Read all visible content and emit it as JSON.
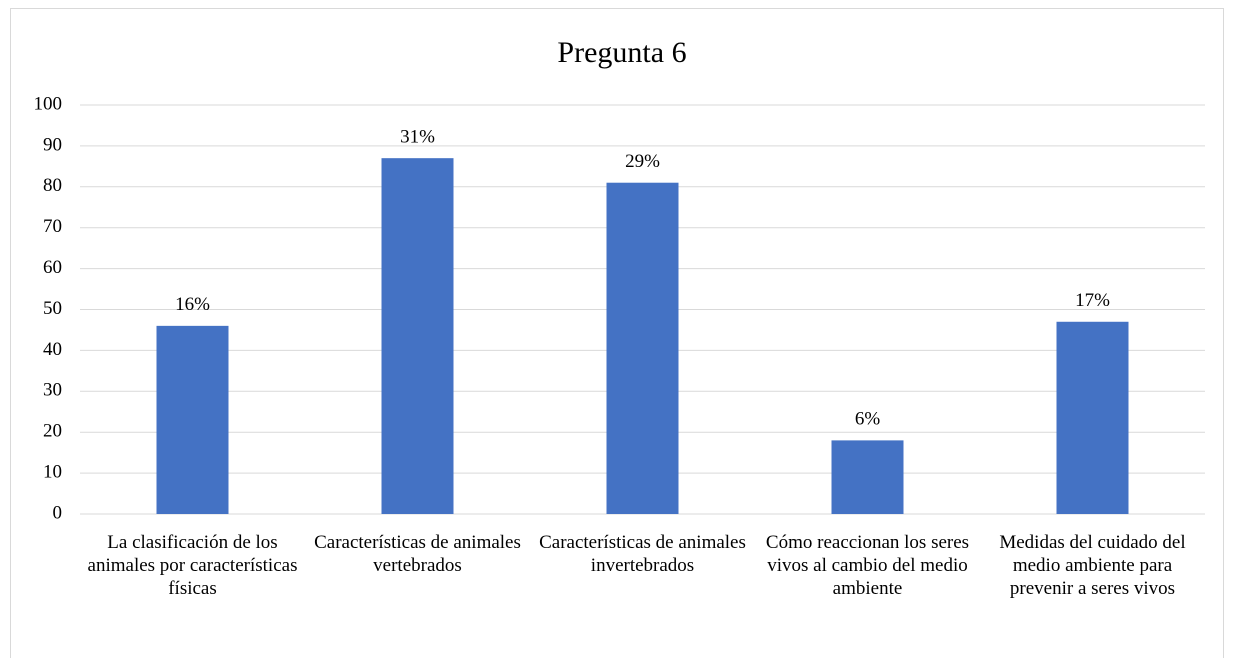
{
  "chart_data": {
    "type": "bar",
    "title": "Pregunta 6",
    "categories": [
      "La clasificación de los animales por características físicas",
      "Características de animales vertebrados",
      "Características de animales invertebrados",
      "Cómo reaccionan los seres vivos al cambio del medio ambiente",
      "Medidas del cuidado del medio ambiente para prevenir a seres vivos"
    ],
    "values": [
      46,
      87,
      81,
      18,
      47
    ],
    "value_labels": [
      "16%",
      "31%",
      "29%",
      "6%",
      "17%"
    ],
    "color": "#4472c4",
    "ylim": [
      0,
      100
    ],
    "yticks": [
      0,
      10,
      20,
      30,
      40,
      50,
      60,
      70,
      80,
      90,
      100
    ],
    "grid": true
  }
}
